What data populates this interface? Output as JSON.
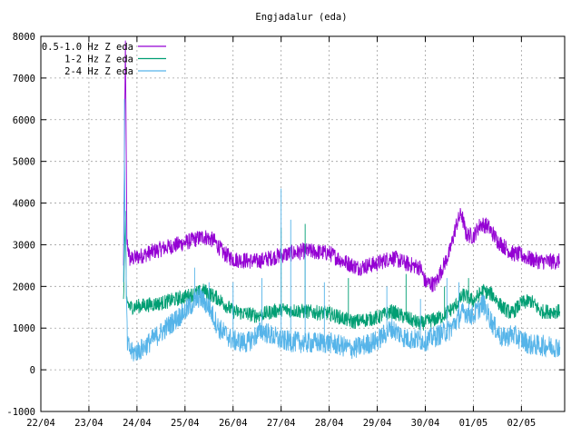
{
  "chart_data": {
    "type": "line",
    "title": "Engjadalur (eda)",
    "xlabel": "",
    "ylabel": "",
    "ylim": [
      -1000,
      8000
    ],
    "yticks": [
      "-1000",
      "0",
      "1000",
      "2000",
      "3000",
      "4000",
      "5000",
      "6000",
      "7000",
      "8000"
    ],
    "x_tick_labels": [
      "22/04",
      "23/04",
      "24/04",
      "25/04",
      "26/04",
      "27/04",
      "28/04",
      "29/04",
      "30/04",
      "01/05",
      "02/05"
    ],
    "x_range_days": [
      0,
      10.9
    ],
    "grid": true,
    "legend_position": "top-left",
    "series": [
      {
        "name": "0.5-1.0 Hz Z eda",
        "color": "#9400d3",
        "noise": 200,
        "points": [
          [
            1.72,
            2500
          ],
          [
            1.76,
            7900
          ],
          [
            1.79,
            3100
          ],
          [
            1.85,
            2650
          ],
          [
            2.0,
            2700
          ],
          [
            2.5,
            2900
          ],
          [
            3.0,
            3050
          ],
          [
            3.4,
            3200
          ],
          [
            3.6,
            3100
          ],
          [
            3.8,
            2800
          ],
          [
            4.0,
            2650
          ],
          [
            4.5,
            2600
          ],
          [
            5.0,
            2750
          ],
          [
            5.5,
            2850
          ],
          [
            6.0,
            2800
          ],
          [
            6.3,
            2600
          ],
          [
            6.6,
            2450
          ],
          [
            7.0,
            2550
          ],
          [
            7.3,
            2700
          ],
          [
            7.6,
            2550
          ],
          [
            7.9,
            2450
          ],
          [
            8.0,
            2100
          ],
          [
            8.2,
            2050
          ],
          [
            8.5,
            2800
          ],
          [
            8.65,
            3500
          ],
          [
            8.75,
            3750
          ],
          [
            8.85,
            3250
          ],
          [
            9.0,
            3200
          ],
          [
            9.15,
            3500
          ],
          [
            9.3,
            3450
          ],
          [
            9.5,
            3100
          ],
          [
            9.8,
            2800
          ],
          [
            10.0,
            2750
          ],
          [
            10.2,
            2650
          ],
          [
            10.4,
            2600
          ],
          [
            10.8,
            2600
          ]
        ],
        "spikes": []
      },
      {
        "name": "1-2 Hz Z eda",
        "color": "#009e73",
        "noise": 180,
        "points": [
          [
            1.72,
            1700
          ],
          [
            1.76,
            3800
          ],
          [
            1.78,
            1700
          ],
          [
            1.85,
            1500
          ],
          [
            2.5,
            1600
          ],
          [
            3.0,
            1750
          ],
          [
            3.4,
            1900
          ],
          [
            3.7,
            1700
          ],
          [
            4.0,
            1400
          ],
          [
            4.5,
            1300
          ],
          [
            5.0,
            1450
          ],
          [
            5.5,
            1400
          ],
          [
            6.0,
            1350
          ],
          [
            6.5,
            1150
          ],
          [
            7.0,
            1250
          ],
          [
            7.3,
            1400
          ],
          [
            7.6,
            1250
          ],
          [
            7.9,
            1100
          ],
          [
            8.3,
            1250
          ],
          [
            8.6,
            1500
          ],
          [
            8.8,
            1800
          ],
          [
            9.0,
            1650
          ],
          [
            9.2,
            1900
          ],
          [
            9.4,
            1800
          ],
          [
            9.6,
            1500
          ],
          [
            9.8,
            1350
          ],
          [
            10.0,
            1600
          ],
          [
            10.2,
            1650
          ],
          [
            10.4,
            1400
          ],
          [
            10.8,
            1400
          ]
        ],
        "spikes": [
          [
            5.0,
            3400
          ],
          [
            5.5,
            3500
          ],
          [
            6.4,
            2200
          ],
          [
            7.6,
            2300
          ],
          [
            8.4,
            2000
          ],
          [
            8.9,
            2200
          ]
        ]
      },
      {
        "name": "2-4 Hz Z eda",
        "color": "#56b4e9",
        "noise": 260,
        "points": [
          [
            1.72,
            2100
          ],
          [
            1.74,
            5000
          ],
          [
            1.76,
            3300
          ],
          [
            1.78,
            1900
          ],
          [
            1.8,
            600
          ],
          [
            1.9,
            400
          ],
          [
            2.1,
            500
          ],
          [
            2.5,
            900
          ],
          [
            3.0,
            1400
          ],
          [
            3.3,
            1750
          ],
          [
            3.5,
            1500
          ],
          [
            3.7,
            1000
          ],
          [
            4.0,
            700
          ],
          [
            4.3,
            650
          ],
          [
            4.6,
            950
          ],
          [
            5.0,
            700
          ],
          [
            5.5,
            650
          ],
          [
            6.0,
            650
          ],
          [
            6.5,
            500
          ],
          [
            7.0,
            700
          ],
          [
            7.3,
            1000
          ],
          [
            7.6,
            750
          ],
          [
            8.0,
            700
          ],
          [
            8.5,
            950
          ],
          [
            8.8,
            1400
          ],
          [
            9.0,
            1300
          ],
          [
            9.2,
            1600
          ],
          [
            9.4,
            1100
          ],
          [
            9.6,
            750
          ],
          [
            9.8,
            850
          ],
          [
            10.2,
            600
          ],
          [
            10.8,
            550
          ]
        ],
        "spikes": [
          [
            1.74,
            6500
          ],
          [
            3.2,
            2450
          ],
          [
            3.5,
            2100
          ],
          [
            4.0,
            2100
          ],
          [
            4.6,
            2200
          ],
          [
            5.0,
            4350
          ],
          [
            5.2,
            3600
          ],
          [
            5.5,
            2800
          ],
          [
            5.9,
            2100
          ],
          [
            7.2,
            2000
          ],
          [
            7.9,
            1700
          ],
          [
            8.45,
            2200
          ],
          [
            8.7,
            2100
          ]
        ]
      }
    ]
  }
}
